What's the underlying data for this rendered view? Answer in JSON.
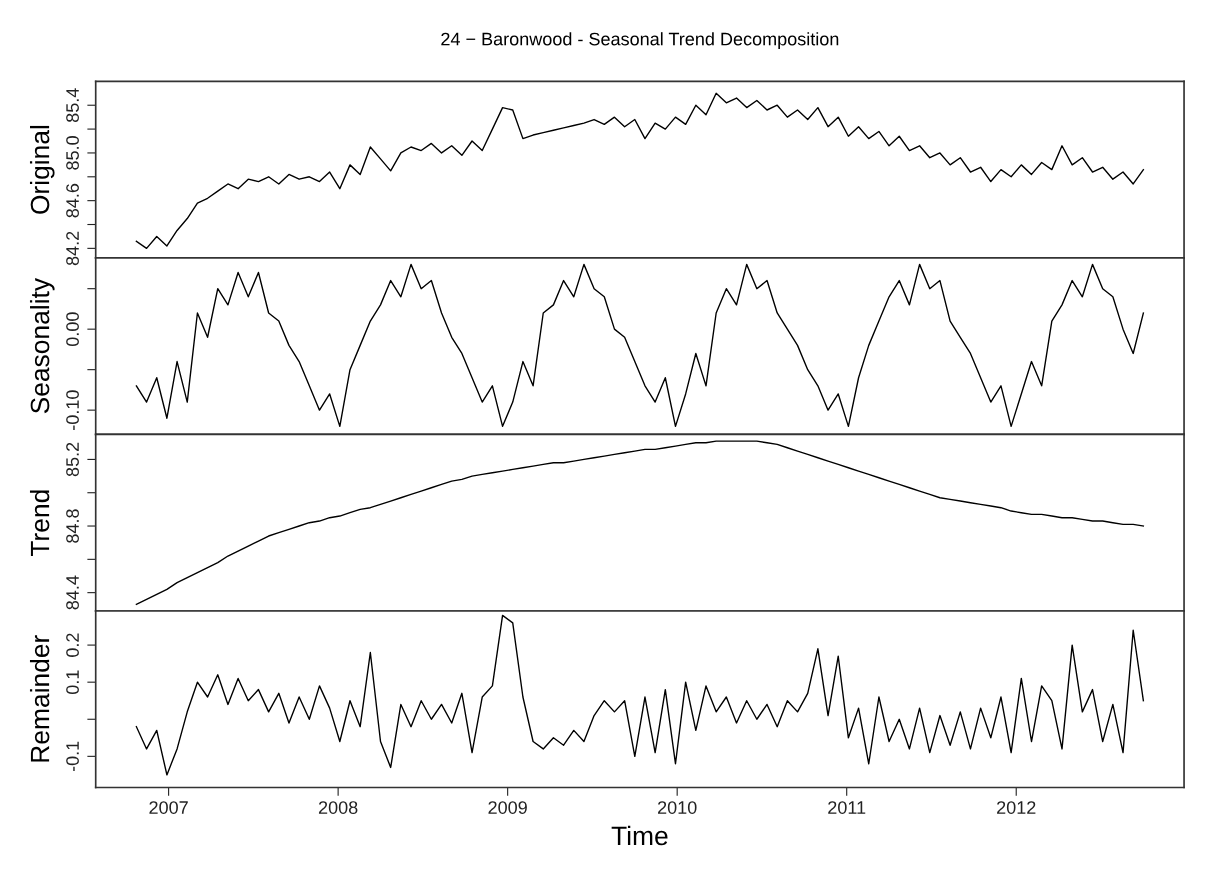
{
  "chart_data": [
    {
      "type": "line",
      "title": "24 − Baronwood - Seasonal Trend Decomposition",
      "ylabel": "Original",
      "tick_labels": "y",
      "xlim": [
        2006.57,
        2012.99
      ],
      "ylim": [
        84.12,
        85.6
      ],
      "yticks": [
        {
          "value": 84.2,
          "label": "84.2"
        },
        {
          "value": 84.4,
          "label": null
        },
        {
          "value": 84.6,
          "label": "84.6"
        },
        {
          "value": 84.8,
          "label": null
        },
        {
          "value": 85.0,
          "label": "85.0"
        },
        {
          "value": 85.2,
          "label": null
        },
        {
          "value": 85.4,
          "label": "85.4"
        }
      ],
      "x": [
        2006.81,
        2006.87,
        2006.93,
        2006.99,
        2007.05,
        2007.11,
        2007.17,
        2007.23,
        2007.29,
        2007.35,
        2007.41,
        2007.47,
        2007.53,
        2007.59,
        2007.65,
        2007.71,
        2007.77,
        2007.83,
        2007.89,
        2007.95,
        2008.01,
        2008.07,
        2008.13,
        2008.19,
        2008.25,
        2008.31,
        2008.37,
        2008.43,
        2008.49,
        2008.55,
        2008.61,
        2008.67,
        2008.73,
        2008.79,
        2008.85,
        2008.91,
        2008.97,
        2009.03,
        2009.09,
        2009.15,
        2009.21,
        2009.27,
        2009.33,
        2009.39,
        2009.45,
        2009.51,
        2009.57,
        2009.63,
        2009.69,
        2009.75,
        2009.81,
        2009.87,
        2009.93,
        2009.99,
        2010.05,
        2010.11,
        2010.17,
        2010.23,
        2010.29,
        2010.35,
        2010.41,
        2010.47,
        2010.53,
        2010.59,
        2010.65,
        2010.71,
        2010.77,
        2010.83,
        2010.89,
        2010.95,
        2011.01,
        2011.07,
        2011.13,
        2011.19,
        2011.25,
        2011.31,
        2011.37,
        2011.43,
        2011.49,
        2011.55,
        2011.61,
        2011.67,
        2011.73,
        2011.79,
        2011.85,
        2011.91,
        2011.97,
        2012.03,
        2012.09,
        2012.15,
        2012.21,
        2012.27,
        2012.33,
        2012.39,
        2012.45,
        2012.51,
        2012.57,
        2012.63,
        2012.69,
        2012.75
      ],
      "series": [
        {
          "color": "#000000",
          "values": [
            84.26,
            84.2,
            84.3,
            84.22,
            84.35,
            84.45,
            84.58,
            84.62,
            84.68,
            84.74,
            84.7,
            84.78,
            84.76,
            84.8,
            84.74,
            84.82,
            84.78,
            84.8,
            84.76,
            84.84,
            84.7,
            84.9,
            84.82,
            85.05,
            84.95,
            84.85,
            85.0,
            85.05,
            85.02,
            85.08,
            85.0,
            85.06,
            84.98,
            85.1,
            85.02,
            85.2,
            85.38,
            85.36,
            85.12,
            85.15,
            85.17,
            85.19,
            85.21,
            85.23,
            85.25,
            85.28,
            85.24,
            85.3,
            85.22,
            85.28,
            85.12,
            85.25,
            85.2,
            85.3,
            85.24,
            85.4,
            85.32,
            85.5,
            85.42,
            85.46,
            85.38,
            85.44,
            85.36,
            85.4,
            85.3,
            85.36,
            85.28,
            85.38,
            85.22,
            85.3,
            85.14,
            85.22,
            85.12,
            85.18,
            85.06,
            85.14,
            85.02,
            85.06,
            84.96,
            85.0,
            84.9,
            84.96,
            84.84,
            84.88,
            84.76,
            84.86,
            84.8,
            84.9,
            84.82,
            84.92,
            84.86,
            85.06,
            84.9,
            84.96,
            84.84,
            84.88,
            84.78,
            84.84,
            84.74,
            84.86
          ]
        }
      ]
    },
    {
      "type": "line",
      "ylabel": "Seasonality",
      "tick_labels": "y",
      "xlim": [
        2006.57,
        2012.99
      ],
      "ylim": [
        -0.13,
        0.088
      ],
      "yticks": [
        {
          "value": -0.1,
          "label": "-0.10"
        },
        {
          "value": -0.05,
          "label": null
        },
        {
          "value": 0.0,
          "label": "0.00"
        },
        {
          "value": 0.05,
          "label": null
        }
      ],
      "x": [
        2006.81,
        2006.87,
        2006.93,
        2006.99,
        2007.05,
        2007.11,
        2007.17,
        2007.23,
        2007.29,
        2007.35,
        2007.41,
        2007.47,
        2007.53,
        2007.59,
        2007.65,
        2007.71,
        2007.77,
        2007.83,
        2007.89,
        2007.95,
        2008.01,
        2008.07,
        2008.13,
        2008.19,
        2008.25,
        2008.31,
        2008.37,
        2008.43,
        2008.49,
        2008.55,
        2008.61,
        2008.67,
        2008.73,
        2008.79,
        2008.85,
        2008.91,
        2008.97,
        2009.03,
        2009.09,
        2009.15,
        2009.21,
        2009.27,
        2009.33,
        2009.39,
        2009.45,
        2009.51,
        2009.57,
        2009.63,
        2009.69,
        2009.75,
        2009.81,
        2009.87,
        2009.93,
        2009.99,
        2010.05,
        2010.11,
        2010.17,
        2010.23,
        2010.29,
        2010.35,
        2010.41,
        2010.47,
        2010.53,
        2010.59,
        2010.65,
        2010.71,
        2010.77,
        2010.83,
        2010.89,
        2010.95,
        2011.01,
        2011.07,
        2011.13,
        2011.19,
        2011.25,
        2011.31,
        2011.37,
        2011.43,
        2011.49,
        2011.55,
        2011.61,
        2011.67,
        2011.73,
        2011.79,
        2011.85,
        2011.91,
        2011.97,
        2012.03,
        2012.09,
        2012.15,
        2012.21,
        2012.27,
        2012.33,
        2012.39,
        2012.45,
        2012.51,
        2012.57,
        2012.63,
        2012.69,
        2012.75
      ],
      "series": [
        {
          "color": "#000000",
          "values": [
            -0.07,
            -0.09,
            -0.06,
            -0.11,
            -0.04,
            -0.09,
            0.02,
            -0.01,
            0.05,
            0.03,
            0.07,
            0.04,
            0.07,
            0.02,
            0.01,
            -0.02,
            -0.04,
            -0.07,
            -0.1,
            -0.08,
            -0.12,
            -0.05,
            -0.02,
            0.01,
            0.03,
            0.06,
            0.04,
            0.08,
            0.05,
            0.06,
            0.02,
            -0.01,
            -0.03,
            -0.06,
            -0.09,
            -0.07,
            -0.12,
            -0.09,
            -0.04,
            -0.07,
            0.02,
            0.03,
            0.06,
            0.04,
            0.08,
            0.05,
            0.04,
            0.0,
            -0.01,
            -0.04,
            -0.07,
            -0.09,
            -0.06,
            -0.12,
            -0.08,
            -0.03,
            -0.07,
            0.02,
            0.05,
            0.03,
            0.08,
            0.05,
            0.06,
            0.02,
            0.0,
            -0.02,
            -0.05,
            -0.07,
            -0.1,
            -0.08,
            -0.12,
            -0.06,
            -0.02,
            0.01,
            0.04,
            0.06,
            0.03,
            0.08,
            0.05,
            0.06,
            0.01,
            -0.01,
            -0.03,
            -0.06,
            -0.09,
            -0.07,
            -0.12,
            -0.08,
            -0.04,
            -0.07,
            0.01,
            0.03,
            0.06,
            0.04,
            0.08,
            0.05,
            0.04,
            0.0,
            -0.03,
            0.02
          ]
        }
      ]
    },
    {
      "type": "line",
      "ylabel": "Trend",
      "tick_labels": "y",
      "xlim": [
        2006.57,
        2012.99
      ],
      "ylim": [
        84.29,
        85.35
      ],
      "yticks": [
        {
          "value": 84.4,
          "label": "84.4"
        },
        {
          "value": 84.6,
          "label": null
        },
        {
          "value": 84.8,
          "label": "84.8"
        },
        {
          "value": 85.0,
          "label": null
        },
        {
          "value": 85.2,
          "label": "85.2"
        }
      ],
      "x": [
        2006.81,
        2006.87,
        2006.93,
        2006.99,
        2007.05,
        2007.11,
        2007.17,
        2007.23,
        2007.29,
        2007.35,
        2007.41,
        2007.47,
        2007.53,
        2007.59,
        2007.65,
        2007.71,
        2007.77,
        2007.83,
        2007.89,
        2007.95,
        2008.01,
        2008.07,
        2008.13,
        2008.19,
        2008.25,
        2008.31,
        2008.37,
        2008.43,
        2008.49,
        2008.55,
        2008.61,
        2008.67,
        2008.73,
        2008.79,
        2008.85,
        2008.91,
        2008.97,
        2009.03,
        2009.09,
        2009.15,
        2009.21,
        2009.27,
        2009.33,
        2009.39,
        2009.45,
        2009.51,
        2009.57,
        2009.63,
        2009.69,
        2009.75,
        2009.81,
        2009.87,
        2009.93,
        2009.99,
        2010.05,
        2010.11,
        2010.17,
        2010.23,
        2010.29,
        2010.35,
        2010.41,
        2010.47,
        2010.53,
        2010.59,
        2010.65,
        2010.71,
        2010.77,
        2010.83,
        2010.89,
        2010.95,
        2011.01,
        2011.07,
        2011.13,
        2011.19,
        2011.25,
        2011.31,
        2011.37,
        2011.43,
        2011.49,
        2011.55,
        2011.61,
        2011.67,
        2011.73,
        2011.79,
        2011.85,
        2011.91,
        2011.97,
        2012.03,
        2012.09,
        2012.15,
        2012.21,
        2012.27,
        2012.33,
        2012.39,
        2012.45,
        2012.51,
        2012.57,
        2012.63,
        2012.69,
        2012.75
      ],
      "series": [
        {
          "color": "#000000",
          "values": [
            84.33,
            84.36,
            84.39,
            84.42,
            84.46,
            84.49,
            84.52,
            84.55,
            84.58,
            84.62,
            84.65,
            84.68,
            84.71,
            84.74,
            84.76,
            84.78,
            84.8,
            84.82,
            84.83,
            84.85,
            84.86,
            84.88,
            84.9,
            84.91,
            84.93,
            84.95,
            84.97,
            84.99,
            85.01,
            85.03,
            85.05,
            85.07,
            85.08,
            85.1,
            85.11,
            85.12,
            85.13,
            85.14,
            85.15,
            85.16,
            85.17,
            85.18,
            85.18,
            85.19,
            85.2,
            85.21,
            85.22,
            85.23,
            85.24,
            85.25,
            85.26,
            85.26,
            85.27,
            85.28,
            85.29,
            85.3,
            85.3,
            85.31,
            85.31,
            85.31,
            85.31,
            85.31,
            85.3,
            85.29,
            85.27,
            85.25,
            85.23,
            85.21,
            85.19,
            85.17,
            85.15,
            85.13,
            85.11,
            85.09,
            85.07,
            85.05,
            85.03,
            85.01,
            84.99,
            84.97,
            84.96,
            84.95,
            84.94,
            84.93,
            84.92,
            84.91,
            84.89,
            84.88,
            84.87,
            84.87,
            84.86,
            84.85,
            84.85,
            84.84,
            84.83,
            84.83,
            84.82,
            84.81,
            84.81,
            84.8
          ]
        }
      ]
    },
    {
      "type": "line",
      "ylabel": "Remainder",
      "xlabel": "Time",
      "xlim": [
        2006.57,
        2012.99
      ],
      "ylim": [
        -0.184,
        0.292
      ],
      "xticks": [
        2007,
        2008,
        2009,
        2010,
        2011,
        2012
      ],
      "yticks": [
        {
          "value": -0.1,
          "label": "-0.1"
        },
        {
          "value": 0.0,
          "label": null
        },
        {
          "value": 0.1,
          "label": "0.1"
        },
        {
          "value": 0.2,
          "label": "0.2"
        }
      ],
      "x": [
        2006.81,
        2006.87,
        2006.93,
        2006.99,
        2007.05,
        2007.11,
        2007.17,
        2007.23,
        2007.29,
        2007.35,
        2007.41,
        2007.47,
        2007.53,
        2007.59,
        2007.65,
        2007.71,
        2007.77,
        2007.83,
        2007.89,
        2007.95,
        2008.01,
        2008.07,
        2008.13,
        2008.19,
        2008.25,
        2008.31,
        2008.37,
        2008.43,
        2008.49,
        2008.55,
        2008.61,
        2008.67,
        2008.73,
        2008.79,
        2008.85,
        2008.91,
        2008.97,
        2009.03,
        2009.09,
        2009.15,
        2009.21,
        2009.27,
        2009.33,
        2009.39,
        2009.45,
        2009.51,
        2009.57,
        2009.63,
        2009.69,
        2009.75,
        2009.81,
        2009.87,
        2009.93,
        2009.99,
        2010.05,
        2010.11,
        2010.17,
        2010.23,
        2010.29,
        2010.35,
        2010.41,
        2010.47,
        2010.53,
        2010.59,
        2010.65,
        2010.71,
        2010.77,
        2010.83,
        2010.89,
        2010.95,
        2011.01,
        2011.07,
        2011.13,
        2011.19,
        2011.25,
        2011.31,
        2011.37,
        2011.43,
        2011.49,
        2011.55,
        2011.61,
        2011.67,
        2011.73,
        2011.79,
        2011.85,
        2011.91,
        2011.97,
        2012.03,
        2012.09,
        2012.15,
        2012.21,
        2012.27,
        2012.33,
        2012.39,
        2012.45,
        2012.51,
        2012.57,
        2012.63,
        2012.69,
        2012.75
      ],
      "series": [
        {
          "color": "#000000",
          "values": [
            -0.02,
            -0.08,
            -0.03,
            -0.15,
            -0.08,
            0.02,
            0.1,
            0.06,
            0.12,
            0.04,
            0.11,
            0.05,
            0.08,
            0.02,
            0.07,
            -0.01,
            0.06,
            0.0,
            0.09,
            0.03,
            -0.06,
            0.05,
            -0.02,
            0.18,
            -0.06,
            -0.13,
            0.04,
            -0.02,
            0.05,
            0.0,
            0.04,
            -0.01,
            0.07,
            -0.09,
            0.06,
            0.09,
            0.28,
            0.26,
            0.06,
            -0.06,
            -0.08,
            -0.05,
            -0.07,
            -0.03,
            -0.06,
            0.01,
            0.05,
            0.02,
            0.05,
            -0.1,
            0.06,
            -0.09,
            0.08,
            -0.12,
            0.1,
            -0.03,
            0.09,
            0.02,
            0.06,
            -0.01,
            0.05,
            0.0,
            0.04,
            -0.02,
            0.05,
            0.02,
            0.07,
            0.19,
            0.01,
            0.17,
            -0.05,
            0.03,
            -0.12,
            0.06,
            -0.06,
            0.0,
            -0.08,
            0.03,
            -0.09,
            0.01,
            -0.07,
            0.02,
            -0.08,
            0.03,
            -0.05,
            0.06,
            -0.09,
            0.11,
            -0.06,
            0.09,
            0.05,
            -0.08,
            0.2,
            0.02,
            0.08,
            -0.06,
            0.04,
            -0.09,
            0.24,
            0.05
          ]
        }
      ]
    }
  ]
}
